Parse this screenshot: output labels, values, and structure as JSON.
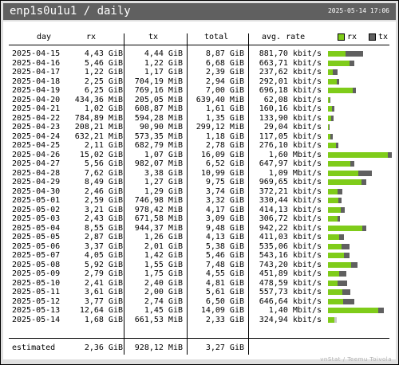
{
  "header": {
    "title": "enp1s0u1u1 / daily",
    "timestamp": "2025-05-14 17:06"
  },
  "columns": {
    "day": "day",
    "rx": "rx",
    "tx": "tx",
    "total": "total",
    "avg": "avg. rate"
  },
  "legend": {
    "rx_label": "rx",
    "tx_label": "tx",
    "rx_color": "#7fcc1a",
    "tx_color": "#606060"
  },
  "rows": [
    {
      "day": "2025-04-15",
      "rx": "4,43 GiB",
      "tx": "4,44 GiB",
      "total": "8,87 GiB",
      "avg": "881,70 kbit/s"
    },
    {
      "day": "2025-04-16",
      "rx": "5,46 GiB",
      "tx": "1,22 GiB",
      "total": "6,68 GiB",
      "avg": "663,71 kbit/s"
    },
    {
      "day": "2025-04-17",
      "rx": "1,22 GiB",
      "tx": "1,17 GiB",
      "total": "2,39 GiB",
      "avg": "237,62 kbit/s"
    },
    {
      "day": "2025-04-18",
      "rx": "2,25 GiB",
      "tx": "704,19 MiB",
      "total": "2,94 GiB",
      "avg": "292,01 kbit/s"
    },
    {
      "day": "2025-04-19",
      "rx": "6,25 GiB",
      "tx": "769,16 MiB",
      "total": "7,00 GiB",
      "avg": "696,18 kbit/s"
    },
    {
      "day": "2025-04-20",
      "rx": "434,36 MiB",
      "tx": "205,05 MiB",
      "total": "639,40 MiB",
      "avg": "62,08 kbit/s"
    },
    {
      "day": "2025-04-21",
      "rx": "1,02 GiB",
      "tx": "608,87 MiB",
      "total": "1,61 GiB",
      "avg": "160,16 kbit/s"
    },
    {
      "day": "2025-04-22",
      "rx": "784,89 MiB",
      "tx": "594,28 MiB",
      "total": "1,35 GiB",
      "avg": "133,90 kbit/s"
    },
    {
      "day": "2025-04-23",
      "rx": "208,21 MiB",
      "tx": "90,90 MiB",
      "total": "299,12 MiB",
      "avg": "29,04 kbit/s"
    },
    {
      "day": "2025-04-24",
      "rx": "632,21 MiB",
      "tx": "573,35 MiB",
      "total": "1,18 GiB",
      "avg": "117,05 kbit/s"
    },
    {
      "day": "2025-04-25",
      "rx": "2,11 GiB",
      "tx": "682,79 MiB",
      "total": "2,78 GiB",
      "avg": "276,10 kbit/s"
    },
    {
      "day": "2025-04-26",
      "rx": "15,02 GiB",
      "tx": "1,07 GiB",
      "total": "16,09 GiB",
      "avg": "1,60 Mbit/s"
    },
    {
      "day": "2025-04-27",
      "rx": "5,56 GiB",
      "tx": "982,07 MiB",
      "total": "6,52 GiB",
      "avg": "647,97 kbit/s"
    },
    {
      "day": "2025-04-28",
      "rx": "7,62 GiB",
      "tx": "3,38 GiB",
      "total": "10,99 GiB",
      "avg": "1,09 Mbit/s"
    },
    {
      "day": "2025-04-29",
      "rx": "8,49 GiB",
      "tx": "1,27 GiB",
      "total": "9,75 GiB",
      "avg": "969,65 kbit/s"
    },
    {
      "day": "2025-04-30",
      "rx": "2,46 GiB",
      "tx": "1,29 GiB",
      "total": "3,74 GiB",
      "avg": "372,21 kbit/s"
    },
    {
      "day": "2025-05-01",
      "rx": "2,59 GiB",
      "tx": "746,98 MiB",
      "total": "3,32 GiB",
      "avg": "330,44 kbit/s"
    },
    {
      "day": "2025-05-02",
      "rx": "3,21 GiB",
      "tx": "978,42 MiB",
      "total": "4,17 GiB",
      "avg": "414,13 kbit/s"
    },
    {
      "day": "2025-05-03",
      "rx": "2,43 GiB",
      "tx": "671,58 MiB",
      "total": "3,09 GiB",
      "avg": "306,72 kbit/s"
    },
    {
      "day": "2025-05-04",
      "rx": "8,55 GiB",
      "tx": "944,37 MiB",
      "total": "9,48 GiB",
      "avg": "942,22 kbit/s"
    },
    {
      "day": "2025-05-05",
      "rx": "2,87 GiB",
      "tx": "1,26 GiB",
      "total": "4,13 GiB",
      "avg": "411,03 kbit/s"
    },
    {
      "day": "2025-05-06",
      "rx": "3,37 GiB",
      "tx": "2,01 GiB",
      "total": "5,38 GiB",
      "avg": "535,06 kbit/s"
    },
    {
      "day": "2025-05-07",
      "rx": "4,05 GiB",
      "tx": "1,42 GiB",
      "total": "5,46 GiB",
      "avg": "543,16 kbit/s"
    },
    {
      "day": "2025-05-08",
      "rx": "5,92 GiB",
      "tx": "1,55 GiB",
      "total": "7,48 GiB",
      "avg": "743,20 kbit/s"
    },
    {
      "day": "2025-05-09",
      "rx": "2,79 GiB",
      "tx": "1,75 GiB",
      "total": "4,55 GiB",
      "avg": "451,89 kbit/s"
    },
    {
      "day": "2025-05-10",
      "rx": "2,41 GiB",
      "tx": "2,40 GiB",
      "total": "4,81 GiB",
      "avg": "478,59 kbit/s"
    },
    {
      "day": "2025-05-11",
      "rx": "3,61 GiB",
      "tx": "2,00 GiB",
      "total": "5,61 GiB",
      "avg": "557,73 kbit/s"
    },
    {
      "day": "2025-05-12",
      "rx": "3,77 GiB",
      "tx": "2,74 GiB",
      "total": "6,50 GiB",
      "avg": "646,64 kbit/s"
    },
    {
      "day": "2025-05-13",
      "rx": "12,64 GiB",
      "tx": "1,45 GiB",
      "total": "14,09 GiB",
      "avg": "1,40 Mbit/s"
    },
    {
      "day": "2025-05-14",
      "rx": "1,68 GiB",
      "tx": "661,53 MiB",
      "total": "2,33 GiB",
      "avg": "324,94 kbit/s"
    }
  ],
  "bars": [
    {
      "rx": 4.43,
      "tx": 4.44
    },
    {
      "rx": 5.46,
      "tx": 1.22
    },
    {
      "rx": 1.22,
      "tx": 1.17
    },
    {
      "rx": 2.25,
      "tx": 0.69
    },
    {
      "rx": 6.25,
      "tx": 0.75
    },
    {
      "rx": 0.42,
      "tx": 0.2
    },
    {
      "rx": 1.02,
      "tx": 0.59
    },
    {
      "rx": 0.77,
      "tx": 0.58
    },
    {
      "rx": 0.2,
      "tx": 0.09
    },
    {
      "rx": 0.62,
      "tx": 0.56
    },
    {
      "rx": 2.11,
      "tx": 0.67
    },
    {
      "rx": 15.02,
      "tx": 1.07
    },
    {
      "rx": 5.56,
      "tx": 0.96
    },
    {
      "rx": 7.62,
      "tx": 3.38
    },
    {
      "rx": 8.49,
      "tx": 1.27
    },
    {
      "rx": 2.46,
      "tx": 1.29
    },
    {
      "rx": 2.59,
      "tx": 0.73
    },
    {
      "rx": 3.21,
      "tx": 0.96
    },
    {
      "rx": 2.43,
      "tx": 0.66
    },
    {
      "rx": 8.55,
      "tx": 0.92
    },
    {
      "rx": 2.87,
      "tx": 1.26
    },
    {
      "rx": 3.37,
      "tx": 2.01
    },
    {
      "rx": 4.05,
      "tx": 1.42
    },
    {
      "rx": 5.92,
      "tx": 1.55
    },
    {
      "rx": 2.79,
      "tx": 1.75
    },
    {
      "rx": 2.41,
      "tx": 2.4
    },
    {
      "rx": 3.61,
      "tx": 2.0
    },
    {
      "rx": 3.77,
      "tx": 2.74
    },
    {
      "rx": 12.64,
      "tx": 1.45
    },
    {
      "rx": 1.68,
      "tx": 0.65
    }
  ],
  "bar_max_gib": 16.09,
  "estimated": {
    "label": "estimated",
    "rx": "2,36 GiB",
    "tx": "928,12 MiB",
    "total": "3,27 GiB"
  },
  "credit": "vnStat / Teemu Toivola"
}
